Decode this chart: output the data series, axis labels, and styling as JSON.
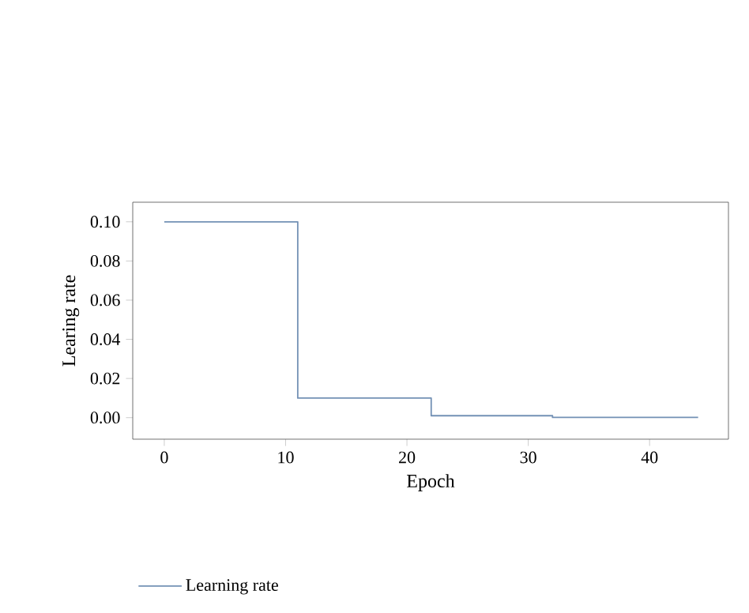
{
  "chart_data": {
    "type": "step",
    "xlabel": "Epoch",
    "ylabel": "Learing rate",
    "x": [
      0,
      11,
      22,
      32,
      44
    ],
    "series": [
      {
        "name": "Learning rate",
        "color": "#7391b5",
        "values": [
          0.1,
          0.01,
          0.001,
          0.0001,
          0.0001
        ]
      }
    ],
    "xlim": [
      -2.6,
      46.5
    ],
    "ylim": [
      -0.011,
      0.11
    ],
    "xticks": [
      0,
      10,
      20,
      30,
      40
    ],
    "yticks": [
      {
        "value": 0,
        "label": "0.00"
      },
      {
        "value": 0.02,
        "label": "0.02"
      },
      {
        "value": 0.04,
        "label": "0.04"
      },
      {
        "value": 0.06,
        "label": "0.06"
      },
      {
        "value": 0.08,
        "label": "0.08"
      },
      {
        "value": 0.1,
        "label": "0.10"
      }
    ],
    "legend": "bottom left",
    "grid": false
  }
}
